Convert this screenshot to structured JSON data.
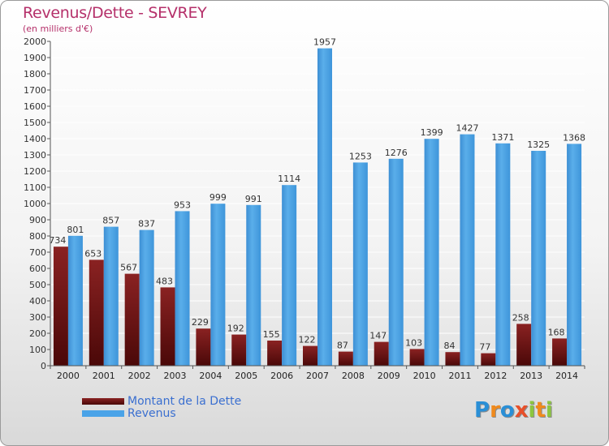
{
  "title": "Revenus/Dette - SEVREY",
  "subtitle": "(en milliers d'€)",
  "logo": {
    "text": "Proxiti",
    "letters": [
      "P",
      "r",
      "o",
      "x",
      "i",
      "t",
      "i"
    ],
    "colors": [
      "#2a8fd6",
      "#f08a1c",
      "#2a8fd6",
      "#e8502a",
      "#8cc63f",
      "#f08a1c",
      "#8cc63f"
    ]
  },
  "colors": {
    "dette": "#7a1a1a",
    "revenus": "#4aa3e8",
    "title": "#b5306a",
    "legend_text": "#3a6fd0"
  },
  "chart_data": {
    "type": "bar",
    "categories": [
      "2000",
      "2001",
      "2002",
      "2003",
      "2004",
      "2005",
      "2006",
      "2007",
      "2008",
      "2009",
      "2010",
      "2011",
      "2012",
      "2013",
      "2014"
    ],
    "series": [
      {
        "name": "Montant de la Dette",
        "values": [
          734,
          653,
          567,
          483,
          229,
          192,
          155,
          122,
          87,
          147,
          103,
          84,
          77,
          258,
          168
        ]
      },
      {
        "name": "Revenus",
        "values": [
          801,
          857,
          837,
          953,
          999,
          991,
          1114,
          1957,
          1253,
          1276,
          1399,
          1427,
          1371,
          1325,
          1368
        ]
      }
    ],
    "ylim": [
      0,
      2000
    ],
    "yticks": [
      0,
      100,
      200,
      300,
      400,
      500,
      600,
      700,
      800,
      900,
      1000,
      1100,
      1200,
      1300,
      1400,
      1500,
      1600,
      1700,
      1800,
      1900,
      2000
    ],
    "legend_position": "bottom-left"
  }
}
